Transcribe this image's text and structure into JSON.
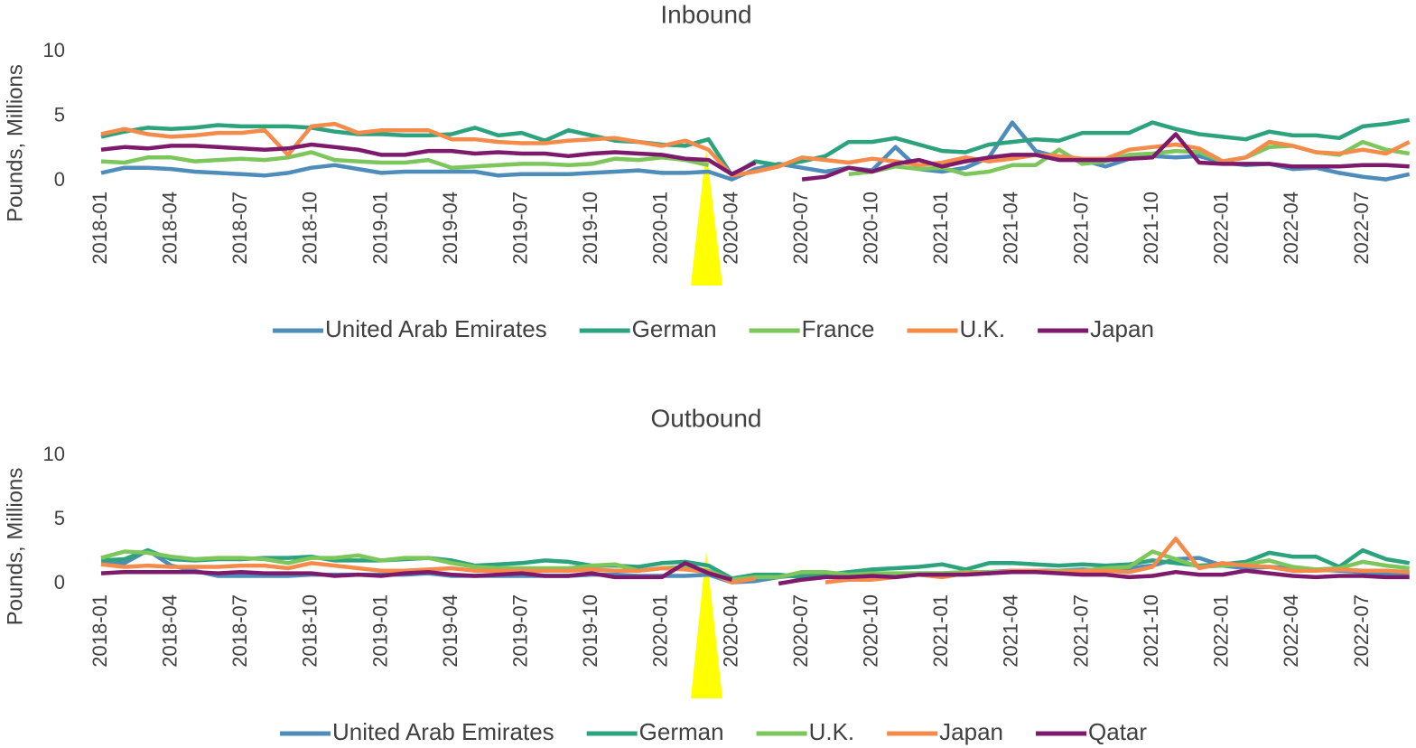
{
  "chart_data": [
    {
      "type": "line",
      "title": "Inbound",
      "y_label": "Pounds, Millions",
      "categories": [
        "2018-01",
        null,
        null,
        "2018-04",
        null,
        null,
        "2018-07",
        null,
        null,
        "2018-10",
        null,
        null,
        "2019-01",
        null,
        null,
        "2019-04",
        null,
        null,
        "2019-07",
        null,
        null,
        "2019-10",
        null,
        null,
        "2020-01",
        null,
        null,
        "2020-04",
        null,
        null,
        "2020-07",
        null,
        null,
        "2020-10",
        null,
        null,
        "2021-01",
        null,
        null,
        "2021-04",
        null,
        null,
        "2021-07",
        null,
        null,
        "2021-10",
        null,
        null,
        "2022-01",
        null,
        null,
        "2022-04",
        null,
        null,
        "2022-07",
        null,
        null
      ],
      "ylim": [
        0,
        10
      ],
      "yticks": [
        0,
        5,
        10
      ],
      "grid": false,
      "legend": "bottom",
      "series": [
        {
          "name": "United Arab Emirates",
          "color": "#4e8cba",
          "values": [
            0.6,
            1.0,
            1.0,
            0.9,
            0.7,
            0.6,
            0.5,
            0.4,
            0.6,
            1.0,
            1.2,
            0.9,
            0.6,
            0.7,
            0.7,
            0.7,
            0.7,
            0.4,
            0.5,
            0.5,
            0.5,
            0.6,
            0.7,
            0.8,
            0.6,
            0.6,
            0.7,
            0.1,
            0.9,
            1.3,
            1.0,
            0.7,
            1.0,
            0.8,
            2.6,
            0.9,
            0.7,
            1.0,
            1.8,
            4.5,
            2.3,
            1.8,
            1.6,
            1.1,
            1.7,
            1.9,
            1.8,
            1.9,
            1.4,
            1.2,
            1.3,
            0.9,
            1.0,
            0.6,
            0.3,
            0.1,
            0.5
          ]
        },
        {
          "name": "German",
          "color": "#2ca27d",
          "values": [
            3.4,
            3.8,
            4.1,
            4.0,
            4.1,
            4.3,
            4.2,
            4.2,
            4.2,
            4.1,
            3.8,
            3.6,
            3.6,
            3.5,
            3.5,
            3.6,
            4.1,
            3.5,
            3.7,
            3.1,
            3.9,
            3.5,
            3.1,
            3.0,
            2.8,
            2.7,
            3.2,
            0.4,
            1.5,
            1.2,
            1.5,
            1.9,
            3.0,
            3.0,
            3.3,
            2.8,
            2.3,
            2.2,
            2.8,
            3.0,
            3.2,
            3.1,
            3.7,
            3.7,
            3.7,
            4.5,
            4.0,
            3.6,
            3.4,
            3.2,
            3.8,
            3.5,
            3.5,
            3.3,
            4.2,
            4.4,
            4.7
          ]
        },
        {
          "name": "France",
          "color": "#7cc65b",
          "values": [
            1.5,
            1.4,
            1.8,
            1.8,
            1.5,
            1.6,
            1.7,
            1.6,
            1.8,
            2.2,
            1.6,
            1.5,
            1.4,
            1.4,
            1.6,
            1.0,
            1.1,
            1.2,
            1.3,
            1.3,
            1.2,
            1.3,
            1.7,
            1.6,
            1.8,
            1.6,
            1.2,
            null,
            null,
            null,
            null,
            null,
            0.5,
            0.7,
            1.1,
            0.9,
            1.0,
            0.5,
            0.7,
            1.2,
            1.2,
            2.4,
            1.3,
            1.5,
            2.0,
            2.1,
            2.3,
            2.2,
            1.5,
            1.8,
            2.6,
            2.7,
            2.2,
            2.0,
            3.0,
            2.4,
            2.1
          ]
        },
        {
          "name": "U.K.",
          "color": "#f48b4a",
          "values": [
            3.6,
            4.0,
            3.6,
            3.4,
            3.5,
            3.7,
            3.7,
            3.9,
            2.0,
            4.2,
            4.4,
            3.7,
            3.9,
            3.9,
            3.9,
            3.2,
            3.2,
            3.0,
            2.9,
            2.9,
            3.1,
            3.2,
            3.3,
            3.0,
            2.7,
            3.1,
            2.4,
            0.4,
            0.7,
            1.1,
            1.8,
            1.6,
            1.4,
            1.7,
            1.5,
            1.2,
            1.4,
            1.8,
            1.5,
            1.7,
            2.0,
            1.9,
            1.7,
            1.7,
            2.4,
            2.6,
            2.8,
            2.5,
            1.5,
            1.8,
            3.0,
            2.7,
            2.2,
            2.1,
            2.4,
            2.1,
            3.0
          ]
        },
        {
          "name": "Japan",
          "color": "#7d1a6b",
          "values": [
            2.4,
            2.6,
            2.5,
            2.7,
            2.7,
            2.6,
            2.5,
            2.4,
            2.5,
            2.8,
            2.6,
            2.4,
            2.0,
            2.0,
            2.3,
            2.3,
            2.1,
            2.2,
            2.1,
            2.1,
            1.9,
            2.1,
            2.2,
            2.1,
            2.0,
            1.7,
            1.6,
            0.5,
            1.4,
            null,
            0.1,
            0.3,
            1.0,
            0.7,
            1.3,
            1.6,
            1.1,
            1.5,
            1.8,
            2.0,
            2.0,
            1.6,
            1.6,
            1.6,
            1.7,
            1.8,
            3.6,
            1.4,
            1.3,
            1.3,
            1.3,
            1.1,
            1.1,
            1.1,
            1.2,
            1.2,
            1.1
          ]
        }
      ]
    },
    {
      "type": "line",
      "title": "Outbound",
      "y_label": "Pounds, Millions",
      "categories": [
        "2018-01",
        null,
        null,
        "2018-04",
        null,
        null,
        "2018-07",
        null,
        null,
        "2018-10",
        null,
        null,
        "2019-01",
        null,
        null,
        "2019-04",
        null,
        null,
        "2019-07",
        null,
        null,
        "2019-10",
        null,
        null,
        "2020-01",
        null,
        null,
        "2020-04",
        null,
        null,
        "2020-07",
        null,
        null,
        "2020-10",
        null,
        null,
        "2021-01",
        null,
        null,
        "2021-04",
        null,
        null,
        "2021-07",
        null,
        null,
        "2021-10",
        null,
        null,
        "2022-01",
        null,
        null,
        "2022-04",
        null,
        null,
        "2022-07",
        null,
        null
      ],
      "ylim": [
        0,
        10
      ],
      "yticks": [
        0,
        5,
        10
      ],
      "grid": false,
      "legend": "bottom",
      "series": [
        {
          "name": "United Arab Emirates",
          "color": "#4e8cba",
          "values": [
            1.5,
            1.6,
            2.6,
            1.4,
            1.0,
            0.6,
            0.6,
            0.6,
            0.6,
            0.7,
            0.7,
            0.7,
            0.7,
            0.7,
            0.8,
            0.6,
            0.6,
            0.6,
            0.6,
            0.6,
            0.6,
            0.7,
            0.7,
            0.6,
            0.6,
            0.6,
            0.7,
            0.1,
            0.2,
            0.5,
            0.7,
            0.8,
            0.7,
            0.8,
            0.7,
            0.8,
            0.8,
            0.9,
            0.9,
            1.0,
            1.0,
            1.0,
            1.1,
            1.0,
            1.2,
            1.4,
            1.9,
            2.0,
            1.4,
            1.2,
            1.3,
            1.2,
            1.1,
            1.0,
            0.9,
            0.8,
            0.8
          ]
        },
        {
          "name": "German",
          "color": "#2ca27d",
          "values": [
            1.8,
            1.9,
            2.6,
            1.9,
            1.8,
            1.9,
            1.9,
            2.0,
            2.0,
            2.1,
            1.8,
            1.8,
            1.8,
            1.9,
            2.0,
            1.8,
            1.4,
            1.5,
            1.6,
            1.8,
            1.7,
            1.4,
            1.4,
            1.3,
            1.6,
            1.7,
            1.4,
            0.4,
            0.7,
            0.7,
            0.5,
            0.7,
            0.9,
            1.1,
            1.2,
            1.3,
            1.5,
            1.1,
            1.6,
            1.6,
            1.5,
            1.4,
            1.5,
            1.4,
            1.5,
            1.8,
            1.6,
            1.4,
            1.5,
            1.7,
            2.4,
            2.1,
            2.1,
            1.3,
            2.6,
            1.9,
            1.6
          ]
        },
        {
          "name": "U.K.",
          "color": "#7cc65b",
          "values": [
            2.0,
            2.5,
            2.4,
            2.1,
            1.9,
            2.0,
            2.0,
            1.9,
            1.6,
            2.0,
            2.0,
            2.2,
            1.8,
            2.0,
            2.0,
            1.6,
            1.3,
            1.2,
            1.2,
            1.2,
            1.2,
            1.4,
            1.5,
            1.0,
            1.2,
            1.3,
            1.0,
            0.3,
            0.5,
            0.5,
            0.9,
            0.9,
            0.7,
            0.8,
            0.8,
            0.8,
            0.8,
            0.9,
            0.9,
            0.9,
            0.9,
            1.0,
            1.0,
            1.2,
            1.3,
            2.5,
            1.9,
            1.3,
            1.4,
            1.5,
            1.8,
            1.3,
            1.1,
            1.2,
            1.7,
            1.4,
            1.2
          ]
        },
        {
          "name": "Japan",
          "color": "#f48b4a",
          "values": [
            1.5,
            1.3,
            1.4,
            1.3,
            1.3,
            1.3,
            1.4,
            1.4,
            1.2,
            1.6,
            1.4,
            1.2,
            1.0,
            1.0,
            1.1,
            1.2,
            1.0,
            1.0,
            1.0,
            1.0,
            1.0,
            1.1,
            1.0,
            1.0,
            1.2,
            1.1,
            0.9,
            0.1,
            0.4,
            null,
            null,
            0.1,
            0.3,
            0.3,
            0.5,
            0.7,
            0.5,
            0.8,
            0.8,
            1.0,
            1.0,
            0.9,
            1.0,
            1.0,
            0.9,
            1.3,
            3.5,
            1.2,
            1.6,
            1.4,
            1.3,
            1.0,
            1.0,
            1.1,
            1.0,
            1.0,
            0.9
          ]
        },
        {
          "name": "Qatar",
          "color": "#7d1a6b",
          "values": [
            0.8,
            0.9,
            0.9,
            0.9,
            0.9,
            0.8,
            0.9,
            0.8,
            0.8,
            0.8,
            0.6,
            0.7,
            0.6,
            0.8,
            0.9,
            0.7,
            0.6,
            0.7,
            0.8,
            0.6,
            0.6,
            0.8,
            0.5,
            0.5,
            0.5,
            1.6,
            0.8,
            0.3,
            null,
            0.0,
            0.3,
            0.5,
            0.5,
            0.6,
            0.5,
            0.7,
            0.7,
            0.7,
            0.8,
            0.9,
            0.9,
            0.8,
            0.7,
            0.7,
            0.5,
            0.6,
            0.9,
            0.7,
            0.7,
            1.0,
            0.8,
            0.6,
            0.5,
            0.6,
            0.6,
            0.5,
            0.5
          ]
        }
      ]
    }
  ]
}
